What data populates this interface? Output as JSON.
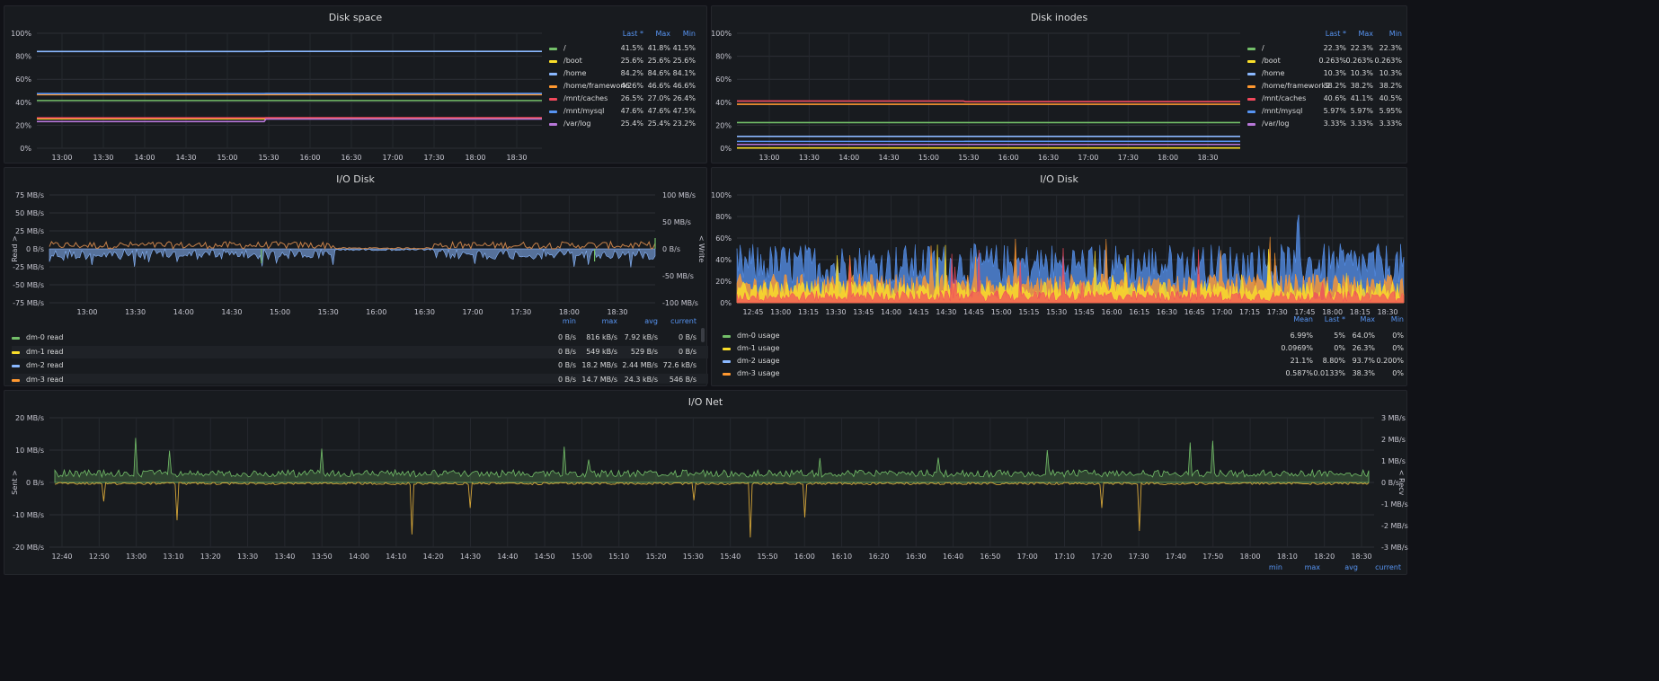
{
  "panels": {
    "disk_space": {
      "title": "Disk space",
      "legend_headers": [
        "Last *",
        "Max",
        "Min"
      ],
      "legend": [
        {
          "name": "/",
          "color": "#73bf69",
          "values": [
            "41.5%",
            "41.8%",
            "41.5%"
          ]
        },
        {
          "name": "/boot",
          "color": "#fade2a",
          "values": [
            "25.6%",
            "25.6%",
            "25.6%"
          ]
        },
        {
          "name": "/home",
          "color": "#8ab8ff",
          "values": [
            "84.2%",
            "84.6%",
            "84.1%"
          ]
        },
        {
          "name": "/home/framework2",
          "color": "#ff9830",
          "values": [
            "46.6%",
            "46.6%",
            "46.6%"
          ]
        },
        {
          "name": "/mnt/caches",
          "color": "#f2495c",
          "values": [
            "26.5%",
            "27.0%",
            "26.4%"
          ]
        },
        {
          "name": "/mnt/mysql",
          "color": "#5794f2",
          "values": [
            "47.6%",
            "47.6%",
            "47.5%"
          ]
        },
        {
          "name": "/var/log",
          "color": "#b877d9",
          "values": [
            "25.4%",
            "25.4%",
            "23.2%"
          ]
        }
      ]
    },
    "disk_inodes": {
      "title": "Disk inodes",
      "legend_headers": [
        "Last *",
        "Max",
        "Min"
      ],
      "legend": [
        {
          "name": "/",
          "color": "#73bf69",
          "values": [
            "22.3%",
            "22.3%",
            "22.3%"
          ]
        },
        {
          "name": "/boot",
          "color": "#fade2a",
          "values": [
            "0.263%",
            "0.263%",
            "0.263%"
          ]
        },
        {
          "name": "/home",
          "color": "#8ab8ff",
          "values": [
            "10.3%",
            "10.3%",
            "10.3%"
          ]
        },
        {
          "name": "/home/framework2",
          "color": "#ff9830",
          "values": [
            "38.2%",
            "38.2%",
            "38.2%"
          ]
        },
        {
          "name": "/mnt/caches",
          "color": "#f2495c",
          "values": [
            "40.6%",
            "41.1%",
            "40.5%"
          ]
        },
        {
          "name": "/mnt/mysql",
          "color": "#5794f2",
          "values": [
            "5.97%",
            "5.97%",
            "5.95%"
          ]
        },
        {
          "name": "/var/log",
          "color": "#b877d9",
          "values": [
            "3.33%",
            "3.33%",
            "3.33%"
          ]
        }
      ]
    },
    "io_disk_left": {
      "title": "I/O Disk",
      "legend_headers": [
        "min",
        "max",
        "avg",
        "current"
      ],
      "legend": [
        {
          "name": "dm-0 read",
          "color": "#73bf69",
          "values": [
            "0 B/s",
            "816 kB/s",
            "7.92 kB/s",
            "0 B/s"
          ]
        },
        {
          "name": "dm-1 read",
          "color": "#fade2a",
          "values": [
            "0 B/s",
            "549 kB/s",
            "529 B/s",
            "0 B/s"
          ]
        },
        {
          "name": "dm-2 read",
          "color": "#8ab8ff",
          "values": [
            "0 B/s",
            "18.2 MB/s",
            "2.44 MB/s",
            "72.6 kB/s"
          ]
        },
        {
          "name": "dm-3 read",
          "color": "#ff9830",
          "values": [
            "0 B/s",
            "14.7 MB/s",
            "24.3 kB/s",
            "546 B/s"
          ]
        }
      ]
    },
    "io_disk_right": {
      "title": "I/O Disk",
      "legend_headers": [
        "Mean",
        "Last *",
        "Max",
        "Min"
      ],
      "legend": [
        {
          "name": "dm-0 usage",
          "color": "#73bf69",
          "values": [
            "6.99%",
            "5%",
            "64.0%",
            "0%"
          ]
        },
        {
          "name": "dm-1 usage",
          "color": "#fade2a",
          "values": [
            "0.0969%",
            "0%",
            "26.3%",
            "0%"
          ]
        },
        {
          "name": "dm-2 usage",
          "color": "#8ab8ff",
          "values": [
            "21.1%",
            "8.80%",
            "93.7%",
            "0.200%"
          ]
        },
        {
          "name": "dm-3 usage",
          "color": "#ff9830",
          "values": [
            "0.587%",
            "0.0133%",
            "38.3%",
            "0%"
          ]
        }
      ]
    },
    "io_net": {
      "title": "I/O Net",
      "legend_headers": [
        "min",
        "max",
        "avg",
        "current"
      ]
    }
  },
  "chart_data": [
    {
      "id": "disk_space",
      "type": "line",
      "title": "Disk space",
      "x_ticks": [
        "13:00",
        "13:30",
        "14:00",
        "14:30",
        "15:00",
        "15:30",
        "16:00",
        "16:30",
        "17:00",
        "17:30",
        "18:00",
        "18:30"
      ],
      "y_ticks": [
        "100%",
        "80%",
        "60%",
        "40%",
        "20%",
        "0%"
      ],
      "ylim": [
        0,
        100
      ],
      "series": [
        {
          "name": "/",
          "color": "#73bf69",
          "values": [
            41.5,
            41.5
          ]
        },
        {
          "name": "/boot",
          "color": "#fade2a",
          "values": [
            25.6,
            25.6
          ]
        },
        {
          "name": "/home",
          "color": "#8ab8ff",
          "values": [
            84.1,
            84.2
          ]
        },
        {
          "name": "/home/framework2",
          "color": "#ff9830",
          "values": [
            46.6,
            46.6
          ]
        },
        {
          "name": "/mnt/caches",
          "color": "#f2495c",
          "values": [
            26.4,
            26.5
          ]
        },
        {
          "name": "/mnt/mysql",
          "color": "#5794f2",
          "values": [
            47.5,
            47.6
          ]
        },
        {
          "name": "/var/log",
          "color": "#b877d9",
          "values": [
            23.2,
            25.4
          ]
        }
      ]
    },
    {
      "id": "disk_inodes",
      "type": "line",
      "title": "Disk inodes",
      "x_ticks": [
        "13:00",
        "13:30",
        "14:00",
        "14:30",
        "15:00",
        "15:30",
        "16:00",
        "16:30",
        "17:00",
        "17:30",
        "18:00",
        "18:30"
      ],
      "y_ticks": [
        "100%",
        "80%",
        "60%",
        "40%",
        "20%",
        "0%"
      ],
      "ylim": [
        0,
        100
      ],
      "series": [
        {
          "name": "/",
          "color": "#73bf69",
          "values": [
            22.3,
            22.3
          ]
        },
        {
          "name": "/boot",
          "color": "#fade2a",
          "values": [
            0.263,
            0.263
          ]
        },
        {
          "name": "/home",
          "color": "#8ab8ff",
          "values": [
            10.3,
            10.3
          ]
        },
        {
          "name": "/home/framework2",
          "color": "#ff9830",
          "values": [
            38.2,
            38.2
          ]
        },
        {
          "name": "/mnt/caches",
          "color": "#f2495c",
          "values": [
            41.1,
            40.6
          ]
        },
        {
          "name": "/mnt/mysql",
          "color": "#5794f2",
          "values": [
            5.95,
            5.97
          ]
        },
        {
          "name": "/var/log",
          "color": "#b877d9",
          "values": [
            3.33,
            3.33
          ]
        }
      ]
    },
    {
      "id": "io_disk_left",
      "type": "line",
      "title": "I/O Disk",
      "x_ticks": [
        "13:00",
        "13:30",
        "14:00",
        "14:30",
        "15:00",
        "15:30",
        "16:00",
        "16:30",
        "17:00",
        "17:30",
        "18:00",
        "18:30"
      ],
      "y_ticks_left": [
        "75 MB/s",
        "50 MB/s",
        "25 MB/s",
        "0 B/s",
        "-25 MB/s",
        "-50 MB/s",
        "-75 MB/s"
      ],
      "y_ticks_right": [
        "100 MB/s",
        "50 MB/s",
        "0 B/s",
        "-50 MB/s",
        "-100 MB/s"
      ],
      "ylabel_left": "Read >",
      "ylabel_right": "< Write",
      "ylim": [
        -75,
        75
      ]
    },
    {
      "id": "io_disk_right",
      "type": "line",
      "title": "I/O Disk",
      "x_ticks": [
        "12:45",
        "13:00",
        "13:15",
        "13:30",
        "13:45",
        "14:00",
        "14:15",
        "14:30",
        "14:45",
        "15:00",
        "15:15",
        "15:30",
        "15:45",
        "16:00",
        "16:15",
        "16:30",
        "16:45",
        "17:00",
        "17:15",
        "17:30",
        "17:45",
        "18:00",
        "18:15",
        "18:30"
      ],
      "y_ticks": [
        "100%",
        "80%",
        "60%",
        "40%",
        "20%",
        "0%"
      ],
      "ylim": [
        0,
        100
      ]
    },
    {
      "id": "io_net",
      "type": "line",
      "title": "I/O Net",
      "x_ticks": [
        "12:40",
        "12:50",
        "13:00",
        "13:10",
        "13:20",
        "13:30",
        "13:40",
        "13:50",
        "14:00",
        "14:10",
        "14:20",
        "14:30",
        "14:40",
        "14:50",
        "15:00",
        "15:10",
        "15:20",
        "15:30",
        "15:40",
        "15:50",
        "16:00",
        "16:10",
        "16:20",
        "16:30",
        "16:40",
        "16:50",
        "17:00",
        "17:10",
        "17:20",
        "17:30",
        "17:40",
        "17:50",
        "18:00",
        "18:10",
        "18:20",
        "18:30"
      ],
      "y_ticks_left": [
        "20 MB/s",
        "10 MB/s",
        "0 B/s",
        "-10 MB/s",
        "-20 MB/s"
      ],
      "y_ticks_right": [
        "3 MB/s",
        "2 MB/s",
        "1 MB/s",
        "0 B/s",
        "-1 MB/s",
        "-2 MB/s",
        "-3 MB/s"
      ],
      "ylabel_left": "Sent >",
      "ylabel_right": "< Recv",
      "ylim": [
        -20,
        20
      ]
    }
  ]
}
